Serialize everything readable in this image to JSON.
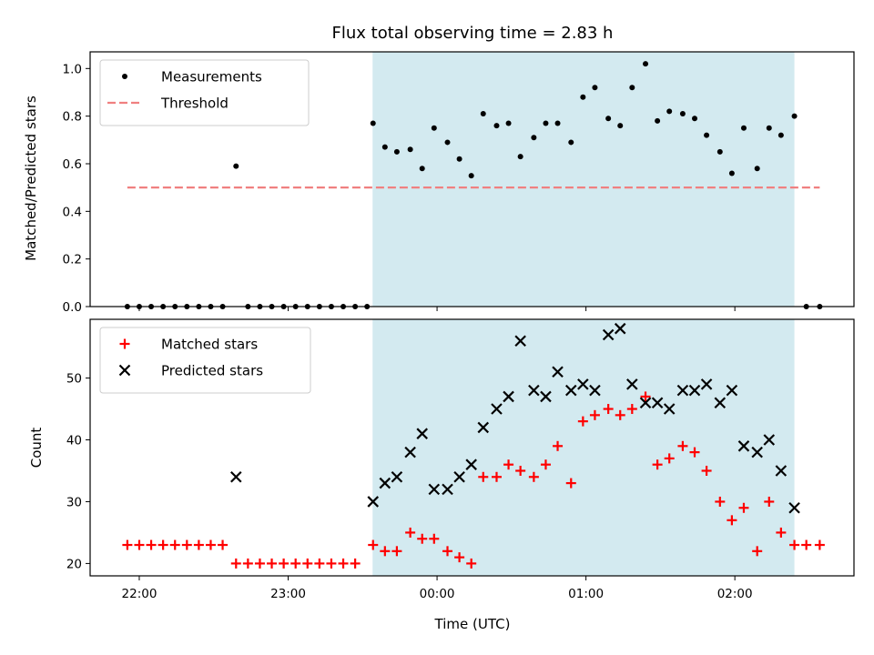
{
  "chart_data": [
    {
      "type": "scatter",
      "title": "Flux total observing time = 2.83 h",
      "ylabel": "Matched/Predicted stars",
      "xlabel": "",
      "x_unit": "hours_from_midnight_UTC",
      "xlim": [
        -2.33,
        2.8
      ],
      "ylim": [
        0,
        1.07
      ],
      "yticks": [
        "0.0",
        "0.2",
        "0.4",
        "0.6",
        "0.8",
        "1.0"
      ],
      "shaded_span": [
        -0.433,
        2.4
      ],
      "shade_color": "#d3eaf0",
      "legend_loc": "upper-left",
      "series": [
        {
          "name": "Measurements",
          "marker": "dot",
          "color": "#000000",
          "points": [
            [
              -2.08,
              0
            ],
            [
              -2.0,
              0
            ],
            [
              -1.92,
              0
            ],
            [
              -1.84,
              0
            ],
            [
              -1.76,
              0
            ],
            [
              -1.68,
              0
            ],
            [
              -1.6,
              0
            ],
            [
              -1.52,
              0
            ],
            [
              -1.44,
              0
            ],
            [
              -1.35,
              0.59
            ],
            [
              -1.27,
              0
            ],
            [
              -1.19,
              0
            ],
            [
              -1.11,
              0
            ],
            [
              -1.03,
              0
            ],
            [
              -0.95,
              0
            ],
            [
              -0.87,
              0
            ],
            [
              -0.79,
              0
            ],
            [
              -0.71,
              0
            ],
            [
              -0.63,
              0
            ],
            [
              -0.55,
              0
            ],
            [
              -0.47,
              0
            ],
            [
              -0.43,
              0.77
            ],
            [
              -0.35,
              0.67
            ],
            [
              -0.27,
              0.65
            ],
            [
              -0.18,
              0.66
            ],
            [
              -0.1,
              0.58
            ],
            [
              -0.02,
              0.75
            ],
            [
              0.07,
              0.69
            ],
            [
              0.15,
              0.62
            ],
            [
              0.23,
              0.55
            ],
            [
              0.31,
              0.81
            ],
            [
              0.4,
              0.76
            ],
            [
              0.48,
              0.77
            ],
            [
              0.56,
              0.63
            ],
            [
              0.65,
              0.71
            ],
            [
              0.73,
              0.77
            ],
            [
              0.81,
              0.77
            ],
            [
              0.9,
              0.69
            ],
            [
              0.98,
              0.88
            ],
            [
              1.06,
              0.92
            ],
            [
              1.15,
              0.79
            ],
            [
              1.23,
              0.76
            ],
            [
              1.31,
              0.92
            ],
            [
              1.4,
              1.02
            ],
            [
              1.48,
              0.78
            ],
            [
              1.56,
              0.82
            ],
            [
              1.65,
              0.81
            ],
            [
              1.73,
              0.79
            ],
            [
              1.81,
              0.72
            ],
            [
              1.9,
              0.65
            ],
            [
              1.98,
              0.56
            ],
            [
              2.06,
              0.75
            ],
            [
              2.15,
              0.58
            ],
            [
              2.23,
              0.75
            ],
            [
              2.31,
              0.72
            ],
            [
              2.4,
              0.8
            ],
            [
              2.48,
              0
            ],
            [
              2.57,
              0
            ]
          ]
        },
        {
          "name": "Threshold",
          "marker": "dashed-line",
          "color": "#f08080",
          "x": [
            -2.08,
            2.57
          ],
          "y": [
            0.5,
            0.5
          ]
        }
      ]
    },
    {
      "type": "scatter",
      "title": "",
      "ylabel": "Count",
      "xlabel": "Time (UTC)",
      "x_unit": "hours_from_midnight_UTC",
      "xlim": [
        -2.33,
        2.8
      ],
      "ylim": [
        18,
        59.5
      ],
      "yticks": [
        "20",
        "30",
        "40",
        "50"
      ],
      "xticks": [
        "22:00",
        "23:00",
        "00:00",
        "01:00",
        "02:00"
      ],
      "shaded_span": [
        -0.433,
        2.4
      ],
      "shade_color": "#d3eaf0",
      "legend_loc": "upper-left",
      "series": [
        {
          "name": "Matched stars",
          "marker": "plus",
          "color": "#ff0000",
          "points": [
            [
              -2.08,
              23
            ],
            [
              -2.0,
              23
            ],
            [
              -1.92,
              23
            ],
            [
              -1.84,
              23
            ],
            [
              -1.76,
              23
            ],
            [
              -1.68,
              23
            ],
            [
              -1.6,
              23
            ],
            [
              -1.52,
              23
            ],
            [
              -1.44,
              23
            ],
            [
              -1.35,
              20
            ],
            [
              -1.27,
              20
            ],
            [
              -1.19,
              20
            ],
            [
              -1.11,
              20
            ],
            [
              -1.03,
              20
            ],
            [
              -0.95,
              20
            ],
            [
              -0.87,
              20
            ],
            [
              -0.79,
              20
            ],
            [
              -0.71,
              20
            ],
            [
              -0.63,
              20
            ],
            [
              -0.55,
              20
            ],
            [
              -0.43,
              23
            ],
            [
              -0.35,
              22
            ],
            [
              -0.27,
              22
            ],
            [
              -0.18,
              25
            ],
            [
              -0.1,
              24
            ],
            [
              -0.02,
              24
            ],
            [
              0.07,
              22
            ],
            [
              0.15,
              21
            ],
            [
              0.23,
              20
            ],
            [
              0.31,
              34
            ],
            [
              0.4,
              34
            ],
            [
              0.48,
              36
            ],
            [
              0.56,
              35
            ],
            [
              0.65,
              34
            ],
            [
              0.73,
              36
            ],
            [
              0.81,
              39
            ],
            [
              0.9,
              33
            ],
            [
              0.98,
              43
            ],
            [
              1.06,
              44
            ],
            [
              1.15,
              45
            ],
            [
              1.23,
              44
            ],
            [
              1.31,
              45
            ],
            [
              1.4,
              47
            ],
            [
              1.48,
              36
            ],
            [
              1.56,
              37
            ],
            [
              1.65,
              39
            ],
            [
              1.73,
              38
            ],
            [
              1.81,
              35
            ],
            [
              1.9,
              30
            ],
            [
              1.98,
              27
            ],
            [
              2.06,
              29
            ],
            [
              2.15,
              22
            ],
            [
              2.23,
              30
            ],
            [
              2.31,
              25
            ],
            [
              2.4,
              23
            ],
            [
              2.48,
              23
            ],
            [
              2.57,
              23
            ]
          ]
        },
        {
          "name": "Predicted stars",
          "marker": "x",
          "color": "#000000",
          "points": [
            [
              -1.35,
              34
            ],
            [
              -0.43,
              30
            ],
            [
              -0.35,
              33
            ],
            [
              -0.27,
              34
            ],
            [
              -0.18,
              38
            ],
            [
              -0.1,
              41
            ],
            [
              -0.02,
              32
            ],
            [
              0.07,
              32
            ],
            [
              0.15,
              34
            ],
            [
              0.23,
              36
            ],
            [
              0.31,
              42
            ],
            [
              0.4,
              45
            ],
            [
              0.48,
              47
            ],
            [
              0.56,
              56
            ],
            [
              0.65,
              48
            ],
            [
              0.73,
              47
            ],
            [
              0.81,
              51
            ],
            [
              0.9,
              48
            ],
            [
              0.98,
              49
            ],
            [
              1.06,
              48
            ],
            [
              1.15,
              57
            ],
            [
              1.23,
              58
            ],
            [
              1.31,
              49
            ],
            [
              1.4,
              46
            ],
            [
              1.48,
              46
            ],
            [
              1.56,
              45
            ],
            [
              1.65,
              48
            ],
            [
              1.73,
              48
            ],
            [
              1.81,
              49
            ],
            [
              1.9,
              46
            ],
            [
              1.98,
              48
            ],
            [
              2.06,
              39
            ],
            [
              2.15,
              38
            ],
            [
              2.23,
              40
            ],
            [
              2.31,
              35
            ],
            [
              2.4,
              29
            ]
          ]
        }
      ]
    }
  ]
}
